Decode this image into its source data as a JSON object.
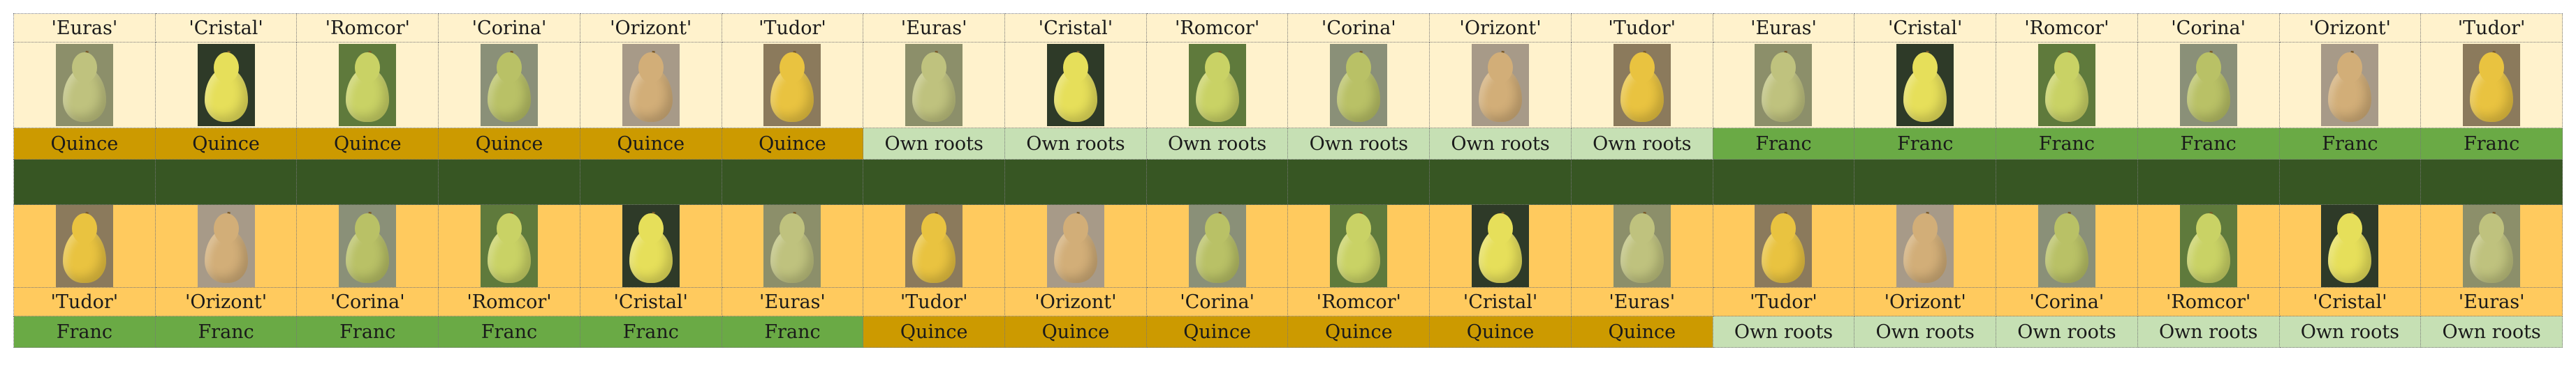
{
  "colors": {
    "cream": "#FFF2CC",
    "orange": "#FFCA5E",
    "separator": "#375623",
    "Quince": "#CC9A00",
    "Own roots": "#C6E0B4",
    "Franc": "#6AAA45"
  },
  "pear_colors": {
    "'Euras'": "#BFC27E",
    "'Cristal'": "#E6DF5A",
    "'Romcor'": "#C9D265",
    "'Corina'": "#B9C166",
    "'Orizont'": "#D2AE78",
    "'Tudor'": "#E9C340"
  },
  "photo_backgrounds": {
    "'Euras'": "#8C8F6A",
    "'Cristal'": "#2E3A28",
    "'Romcor'": "#5F7A3C",
    "'Corina'": "#8A9078",
    "'Orizont'": "#A79A88",
    "'Tudor'": "#8B7A5C"
  },
  "top": {
    "varieties": [
      "'Euras'",
      "'Cristal'",
      "'Romcor'",
      "'Corina'",
      "'Orizont'",
      "'Tudor'",
      "'Euras'",
      "'Cristal'",
      "'Romcor'",
      "'Corina'",
      "'Orizont'",
      "'Tudor'",
      "'Euras'",
      "'Cristal'",
      "'Romcor'",
      "'Corina'",
      "'Orizont'",
      "'Tudor'"
    ],
    "rootstocks": [
      "Quince",
      "Quince",
      "Quince",
      "Quince",
      "Quince",
      "Quince",
      "Own roots",
      "Own roots",
      "Own roots",
      "Own roots",
      "Own roots",
      "Own roots",
      "Franc",
      "Franc",
      "Franc",
      "Franc",
      "Franc",
      "Franc"
    ]
  },
  "bottom": {
    "varieties": [
      "'Tudor'",
      "'Orizont'",
      "'Corina'",
      "'Romcor'",
      "'Cristal'",
      "'Euras'",
      "'Tudor'",
      "'Orizont'",
      "'Corina'",
      "'Romcor'",
      "'Cristal'",
      "'Euras'",
      "'Tudor'",
      "'Orizont'",
      "'Corina'",
      "'Romcor'",
      "'Cristal'",
      "'Euras'"
    ],
    "rootstocks": [
      "Franc",
      "Franc",
      "Franc",
      "Franc",
      "Franc",
      "Franc",
      "Quince",
      "Quince",
      "Quince",
      "Quince",
      "Quince",
      "Quince",
      "Own roots",
      "Own roots",
      "Own roots",
      "Own roots",
      "Own roots",
      "Own roots"
    ]
  }
}
